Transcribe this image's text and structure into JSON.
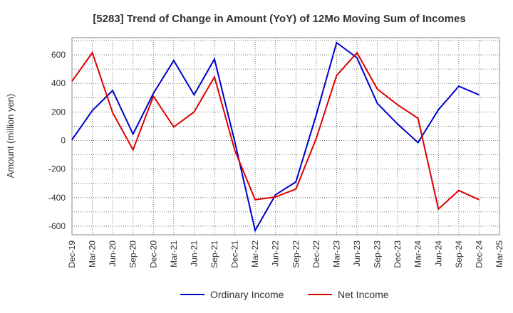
{
  "chart_data": {
    "type": "line",
    "title": "[5283]  Trend of Change in Amount (YoY) of 12Mo Moving Sum of Incomes",
    "xlabel": "",
    "ylabel": "Amount (million yen)",
    "ylim": [
      -660,
      720
    ],
    "yticks": [
      600,
      400,
      200,
      0,
      -200,
      -400,
      -600
    ],
    "ytick_labels": [
      "600",
      "400",
      "200",
      "0",
      "-200",
      "-400",
      "-600"
    ],
    "x_tick_labels": [
      "Dec-19",
      "Mar-20",
      "Jun-20",
      "Sep-20",
      "Dec-20",
      "Mar-21",
      "Jun-21",
      "Sep-21",
      "Dec-21",
      "Mar-22",
      "Jun-22",
      "Sep-22",
      "Dec-22",
      "Mar-23",
      "Jun-23",
      "Sep-23",
      "Dec-23",
      "Mar-24",
      "Jun-24",
      "Sep-24",
      "Dec-24",
      "Mar-25"
    ],
    "x": [
      "Dec-19",
      "Mar-20",
      "Jun-20",
      "Sep-20",
      "Dec-20",
      "Mar-21",
      "Jun-21",
      "Sep-21",
      "Dec-21",
      "Mar-22",
      "Jun-22",
      "Sep-22",
      "Dec-22",
      "Mar-23",
      "Jun-23",
      "Sep-23",
      "Dec-23",
      "Mar-24",
      "Jun-24",
      "Sep-24",
      "Dec-24"
    ],
    "grid": true,
    "legend_position": "bottom-center",
    "series": [
      {
        "name": "Ordinary Income",
        "color": "#0000cc",
        "values": [
          5,
          210,
          350,
          45,
          330,
          560,
          320,
          570,
          -10,
          -630,
          -380,
          -290,
          180,
          685,
          580,
          260,
          115,
          -15,
          215,
          380,
          320
        ]
      },
      {
        "name": "Net Income",
        "color": "#dd0000",
        "values": [
          415,
          615,
          195,
          -65,
          310,
          95,
          200,
          445,
          -70,
          -415,
          -395,
          -340,
          15,
          455,
          615,
          360,
          250,
          155,
          -480,
          -350,
          -415
        ]
      }
    ]
  }
}
